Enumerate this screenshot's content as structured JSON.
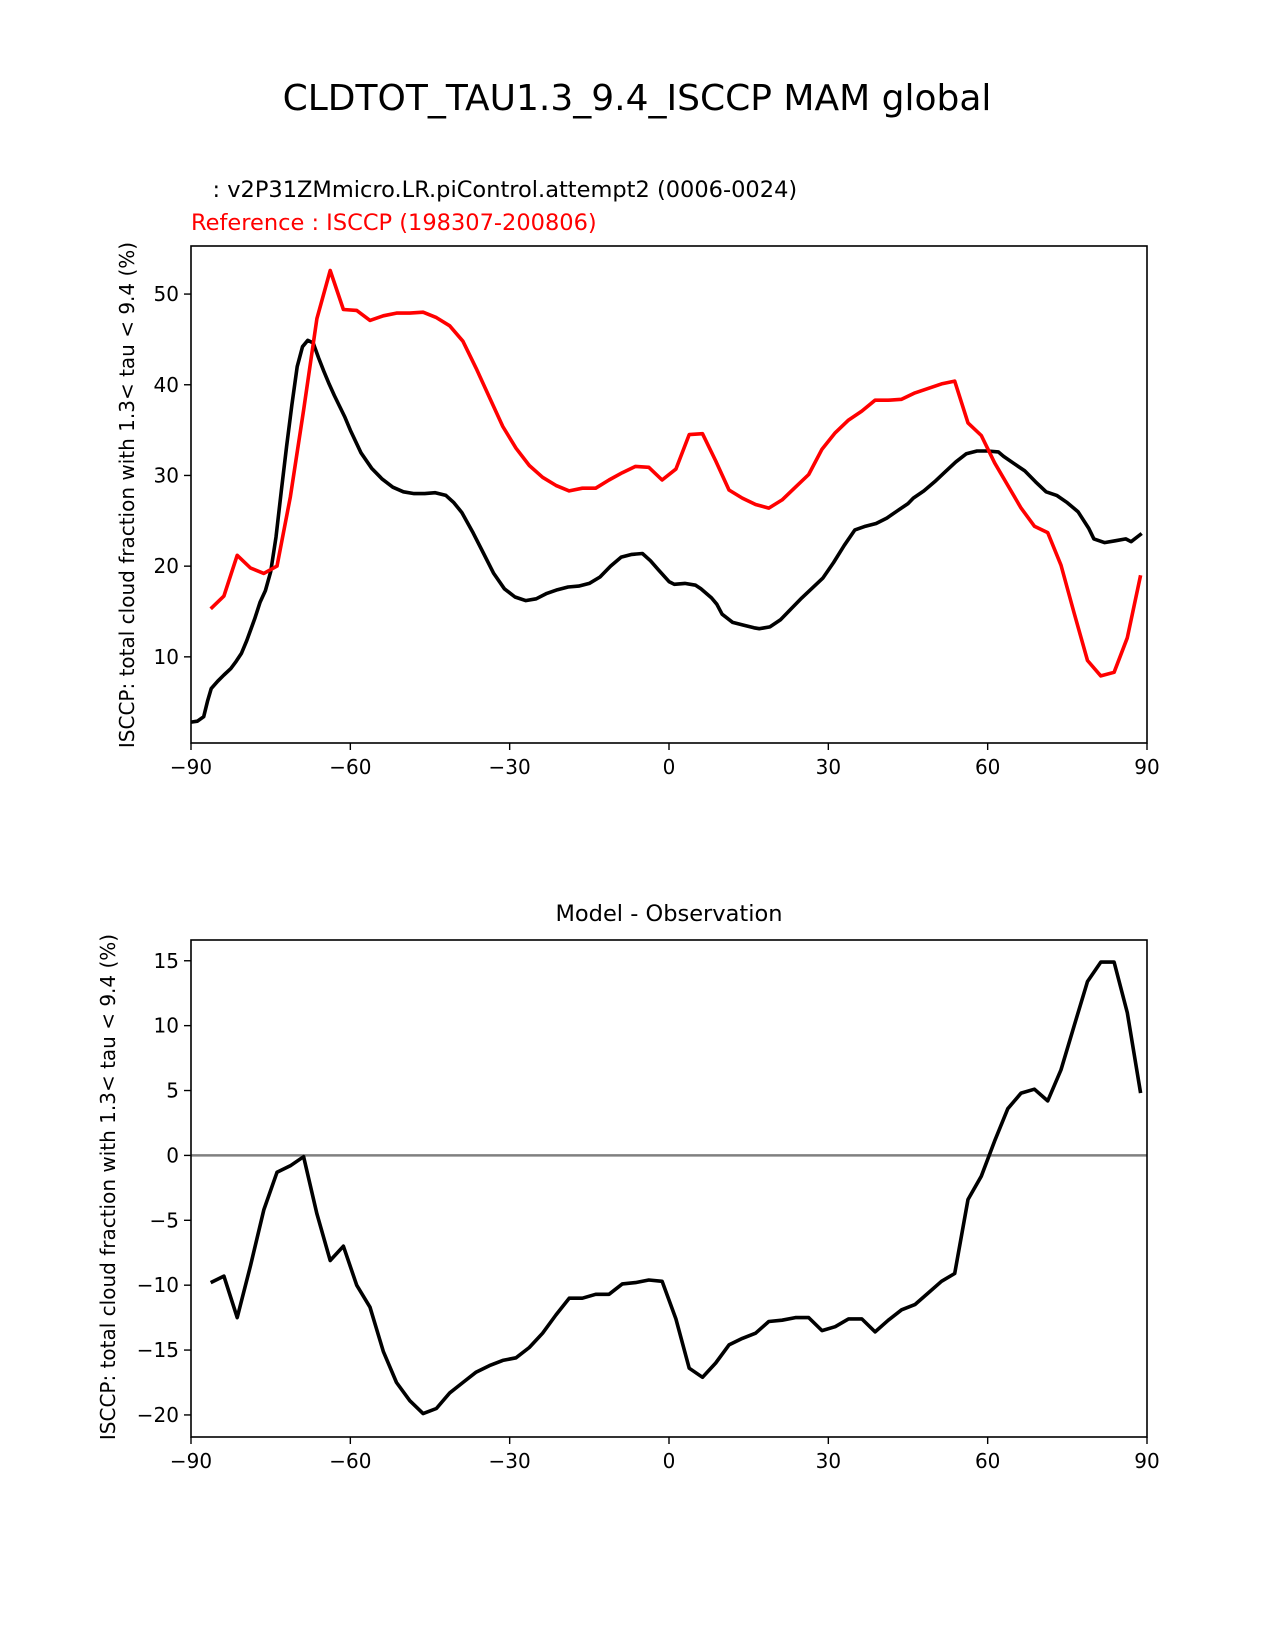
{
  "figure_title": "CLDTOT_TAU1.3_9.4_ISCCP MAM global",
  "colors": {
    "model": "#000000",
    "reference": "#ff0000",
    "zero_line": "#808080",
    "axes": "#000000"
  },
  "chart_data": [
    {
      "type": "line",
      "title": "",
      "model_label": "   : v2P31ZMmicro.LR.piControl.attempt2 (0006-0024)",
      "reference_label": "Reference : ISCCP (198307-200806)",
      "xlabel": "",
      "ylabel": "ISCCP: total cloud fraction with 1.3< tau < 9.4 (%)",
      "xlim": [
        -90,
        90
      ],
      "ylim": [
        0.5,
        55.3
      ],
      "xticks": [
        -90,
        -60,
        -30,
        0,
        30,
        60,
        90
      ],
      "xtick_labels": [
        "−90",
        "−60",
        "−30",
        "0",
        "30",
        "60",
        "90"
      ],
      "yticks": [
        10,
        20,
        30,
        40,
        50
      ],
      "ytick_labels": [
        "10",
        "20",
        "30",
        "40",
        "50"
      ],
      "grid": false,
      "series": [
        {
          "key": "model",
          "x": [
            -90,
            -88.8,
            -87.6,
            -86.9,
            -86.2,
            -85,
            -83.8,
            -82.5,
            -81.5,
            -80.5,
            -79.5,
            -78,
            -77,
            -76,
            -75,
            -74,
            -73,
            -72,
            -71,
            -70,
            -69,
            -68,
            -67,
            -66,
            -65,
            -64,
            -63,
            -62,
            -61,
            -60,
            -58,
            -56,
            -54,
            -52,
            -50,
            -48,
            -46,
            -44,
            -42,
            -40.5,
            -39,
            -37,
            -35,
            -33,
            -31,
            -29,
            -27,
            -25,
            -23,
            -21,
            -19,
            -17,
            -15,
            -13,
            -11,
            -9,
            -7,
            -5,
            -3.5,
            -2,
            0,
            1,
            3,
            5,
            6,
            8,
            9,
            10,
            12,
            14,
            16,
            17,
            19,
            21,
            23,
            25,
            27,
            29,
            31,
            33,
            35,
            37,
            39,
            41,
            43,
            45,
            46,
            48,
            50,
            52,
            54,
            56,
            58,
            60,
            62,
            63,
            65,
            67,
            69,
            71,
            73,
            75,
            77,
            79,
            80,
            82,
            84,
            86,
            87,
            89
          ],
          "y": [
            2.8,
            2.9,
            3.4,
            5.1,
            6.5,
            7.3,
            8.0,
            8.7,
            9.5,
            10.4,
            11.8,
            14.2,
            16.0,
            17.3,
            19.4,
            23.2,
            28.3,
            33.2,
            37.8,
            42.0,
            44.2,
            44.9,
            44.6,
            43.0,
            41.5,
            40.1,
            38.8,
            37.6,
            36.4,
            35.0,
            32.5,
            30.8,
            29.6,
            28.7,
            28.2,
            28.0,
            28.0,
            28.1,
            27.8,
            27.0,
            25.9,
            23.8,
            21.5,
            19.2,
            17.5,
            16.6,
            16.2,
            16.4,
            17.0,
            17.4,
            17.7,
            17.8,
            18.1,
            18.8,
            20.0,
            21.0,
            21.3,
            21.4,
            20.6,
            19.6,
            18.3,
            18.0,
            18.1,
            17.9,
            17.5,
            16.5,
            15.8,
            14.7,
            13.8,
            13.5,
            13.2,
            13.1,
            13.3,
            14.1,
            15.3,
            16.5,
            17.6,
            18.7,
            20.4,
            22.3,
            24.0,
            24.4,
            24.7,
            25.3,
            26.1,
            26.9,
            27.5,
            28.3,
            29.3,
            30.4,
            31.5,
            32.4,
            32.7,
            32.7,
            32.6,
            32.1,
            31.3,
            30.5,
            29.3,
            28.2,
            27.8,
            27.0,
            26.0,
            24.2,
            23.0,
            22.6,
            22.8,
            23.0,
            22.7,
            23.6
          ]
        },
        {
          "key": "reference",
          "x": [
            -86.3,
            -83.8,
            -81.3,
            -78.8,
            -76.3,
            -73.8,
            -71.3,
            -68.8,
            -66.3,
            -63.8,
            -61.3,
            -58.8,
            -56.3,
            -53.8,
            -51.3,
            -48.8,
            -46.3,
            -43.8,
            -41.3,
            -38.8,
            -36.3,
            -33.8,
            -31.3,
            -28.8,
            -26.3,
            -23.8,
            -21.3,
            -18.8,
            -16.3,
            -13.8,
            -11.3,
            -8.8,
            -6.3,
            -3.8,
            -1.3,
            1.3,
            3.8,
            6.3,
            8.8,
            11.3,
            13.8,
            16.3,
            18.8,
            21.3,
            23.8,
            26.3,
            28.8,
            31.3,
            33.8,
            36.3,
            38.8,
            41.3,
            43.8,
            46.3,
            48.8,
            51.3,
            53.8,
            56.3,
            58.8,
            61.3,
            63.8,
            66.3,
            68.8,
            71.3,
            73.8,
            76.3,
            78.8,
            81.3,
            83.8,
            86.3,
            88.8
          ],
          "y": [
            15.3,
            16.7,
            21.2,
            19.8,
            19.2,
            20.0,
            27.6,
            37.2,
            47.3,
            52.6,
            48.3,
            48.2,
            47.1,
            47.6,
            47.9,
            47.9,
            48.0,
            47.4,
            46.5,
            44.8,
            41.8,
            38.6,
            35.4,
            33.0,
            31.1,
            29.8,
            28.9,
            28.3,
            28.6,
            28.6,
            29.5,
            30.3,
            31.0,
            30.9,
            29.5,
            30.7,
            34.5,
            34.6,
            31.6,
            28.4,
            27.5,
            26.8,
            26.4,
            27.3,
            28.7,
            30.1,
            32.9,
            34.7,
            36.1,
            37.1,
            38.3,
            38.3,
            38.4,
            39.1,
            39.6,
            40.1,
            40.4,
            35.8,
            34.4,
            31.4,
            28.9,
            26.4,
            24.4,
            23.7,
            20.1,
            14.8,
            9.6,
            7.9,
            8.3,
            12.1,
            19.0
          ]
        }
      ]
    },
    {
      "type": "line",
      "title": "Model - Observation",
      "xlabel": "",
      "ylabel": "ISCCP: total cloud fraction with 1.3< tau < 9.4 (%)",
      "xlim": [
        -90,
        90
      ],
      "ylim": [
        -21.7,
        16.6
      ],
      "xticks": [
        -90,
        -60,
        -30,
        0,
        30,
        60,
        90
      ],
      "xtick_labels": [
        "−90",
        "−60",
        "−30",
        "0",
        "30",
        "60",
        "90"
      ],
      "yticks": [
        -20,
        -15,
        -10,
        -5,
        0,
        5,
        10,
        15
      ],
      "ytick_labels": [
        "−20",
        "−15",
        "−10",
        "−5",
        "0",
        "5",
        "10",
        "15"
      ],
      "grid": false,
      "zero_line": 0,
      "series": [
        {
          "key": "difference",
          "x": [
            -86.3,
            -83.8,
            -81.3,
            -78.8,
            -76.3,
            -73.8,
            -71.3,
            -68.8,
            -66.3,
            -63.8,
            -61.3,
            -58.8,
            -56.3,
            -53.8,
            -51.3,
            -48.8,
            -46.3,
            -43.8,
            -41.3,
            -38.8,
            -36.3,
            -33.8,
            -31.3,
            -28.8,
            -26.3,
            -23.8,
            -21.3,
            -18.8,
            -16.3,
            -13.8,
            -11.3,
            -8.8,
            -6.3,
            -3.8,
            -1.3,
            1.3,
            3.8,
            6.3,
            8.8,
            11.3,
            13.8,
            16.3,
            18.8,
            21.3,
            23.8,
            26.3,
            28.8,
            31.3,
            33.8,
            36.3,
            38.8,
            41.3,
            43.8,
            46.3,
            48.8,
            51.3,
            53.8,
            56.3,
            58.8,
            61.3,
            63.8,
            66.3,
            68.8,
            71.3,
            73.8,
            76.3,
            78.8,
            81.3,
            83.8,
            86.3,
            88.8
          ],
          "y": [
            -9.8,
            -9.3,
            -12.5,
            -8.5,
            -4.2,
            -1.3,
            -0.8,
            -0.1,
            -4.5,
            -8.1,
            -7.0,
            -10.0,
            -11.7,
            -15.1,
            -17.5,
            -18.9,
            -19.9,
            -19.5,
            -18.3,
            -17.5,
            -16.7,
            -16.2,
            -15.8,
            -15.6,
            -14.8,
            -13.7,
            -12.3,
            -11.0,
            -11.0,
            -10.7,
            -10.7,
            -9.9,
            -9.8,
            -9.6,
            -9.7,
            -12.6,
            -16.4,
            -17.1,
            -16.0,
            -14.6,
            -14.1,
            -13.7,
            -12.8,
            -12.7,
            -12.5,
            -12.5,
            -13.5,
            -13.2,
            -12.6,
            -12.6,
            -13.6,
            -12.7,
            -11.9,
            -11.5,
            -10.6,
            -9.7,
            -9.1,
            -3.4,
            -1.6,
            1.1,
            3.6,
            4.8,
            5.1,
            4.2,
            6.6,
            10.0,
            13.4,
            14.9,
            14.9,
            11.0,
            4.8
          ]
        }
      ]
    }
  ]
}
